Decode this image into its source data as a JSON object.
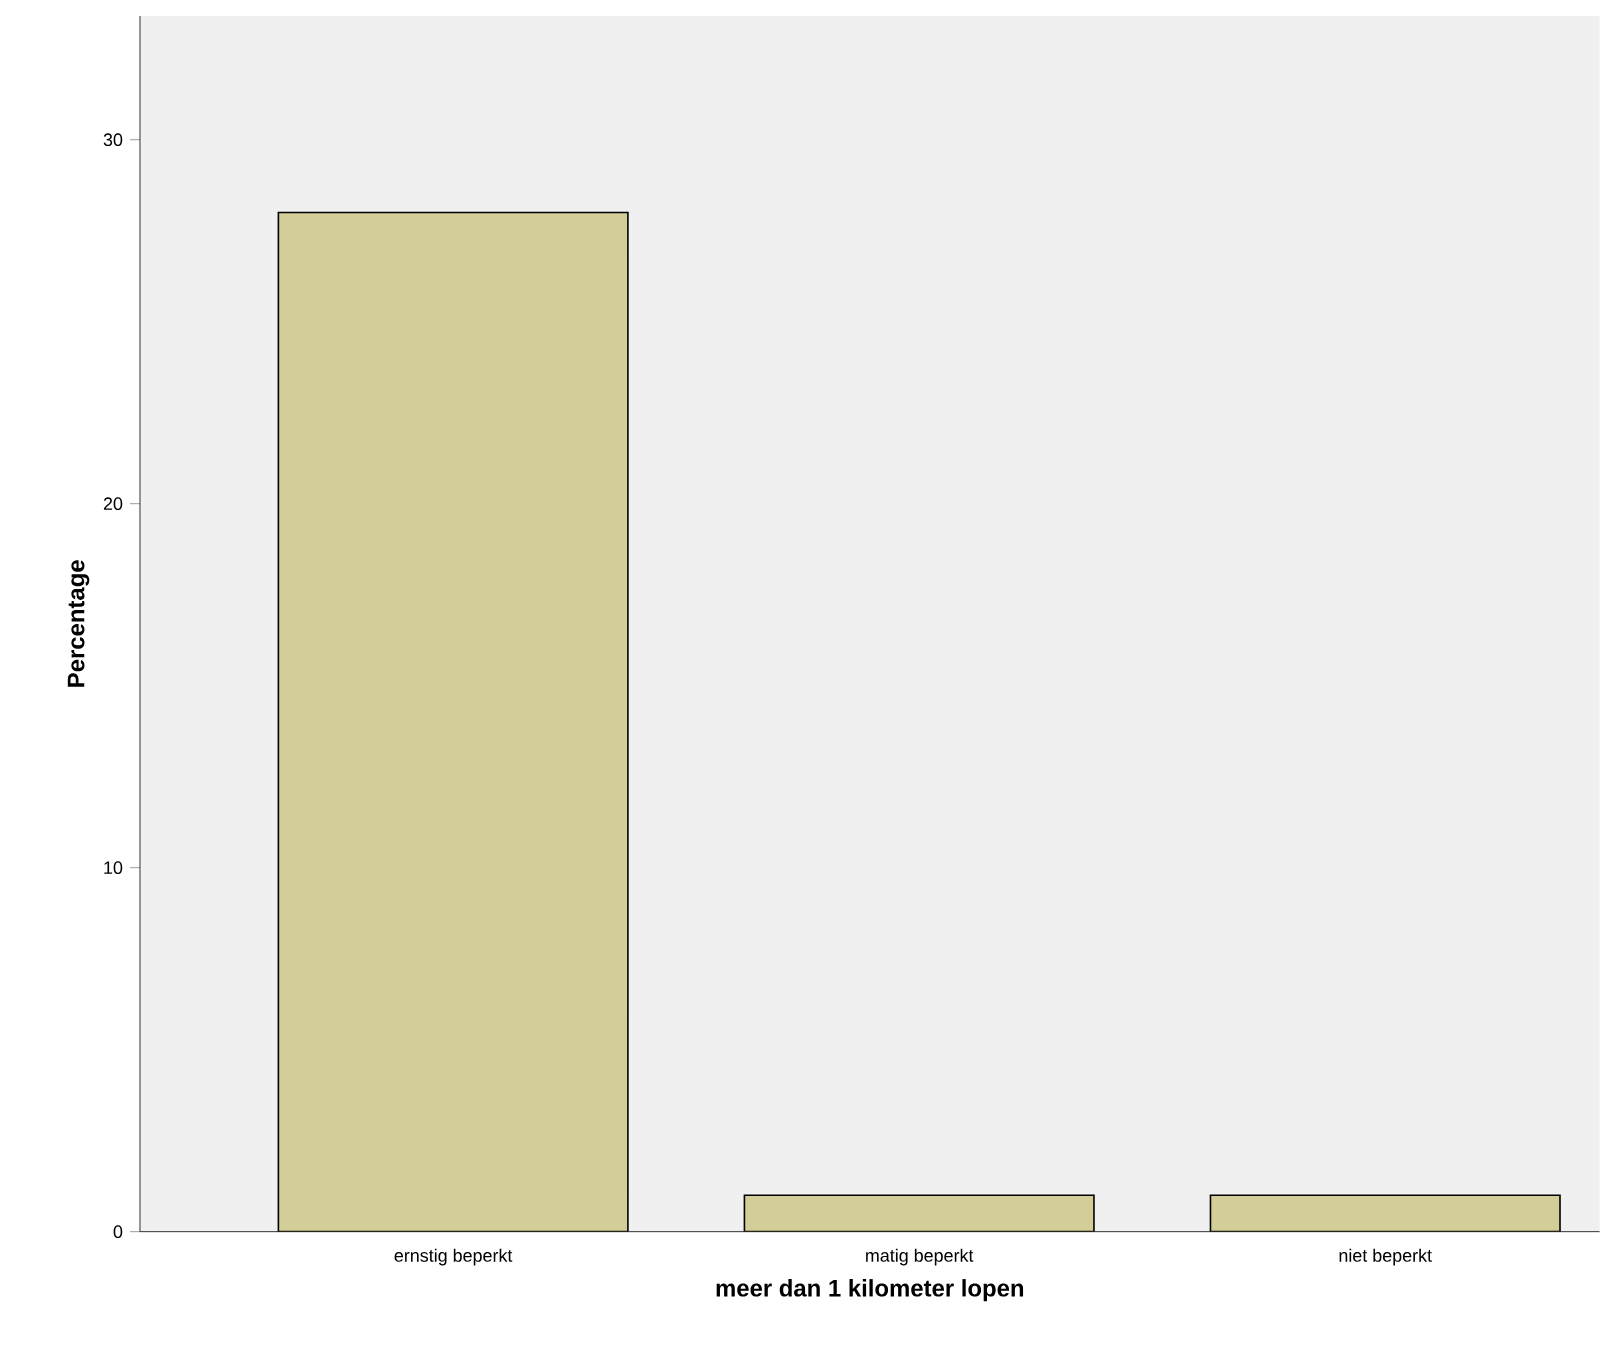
{
  "chart_data": {
    "type": "bar",
    "xlabel": "meer dan 1 kilometer lopen",
    "ylabel": "Percentage",
    "categories": [
      "ernstig beperkt",
      "matig beperkt",
      "niet beperkt"
    ],
    "values": [
      28,
      1,
      1
    ],
    "color": "#d3ce98",
    "ylim": [
      0,
      33.4
    ],
    "yticks": [
      0,
      10,
      20,
      30
    ],
    "grid": false
  }
}
